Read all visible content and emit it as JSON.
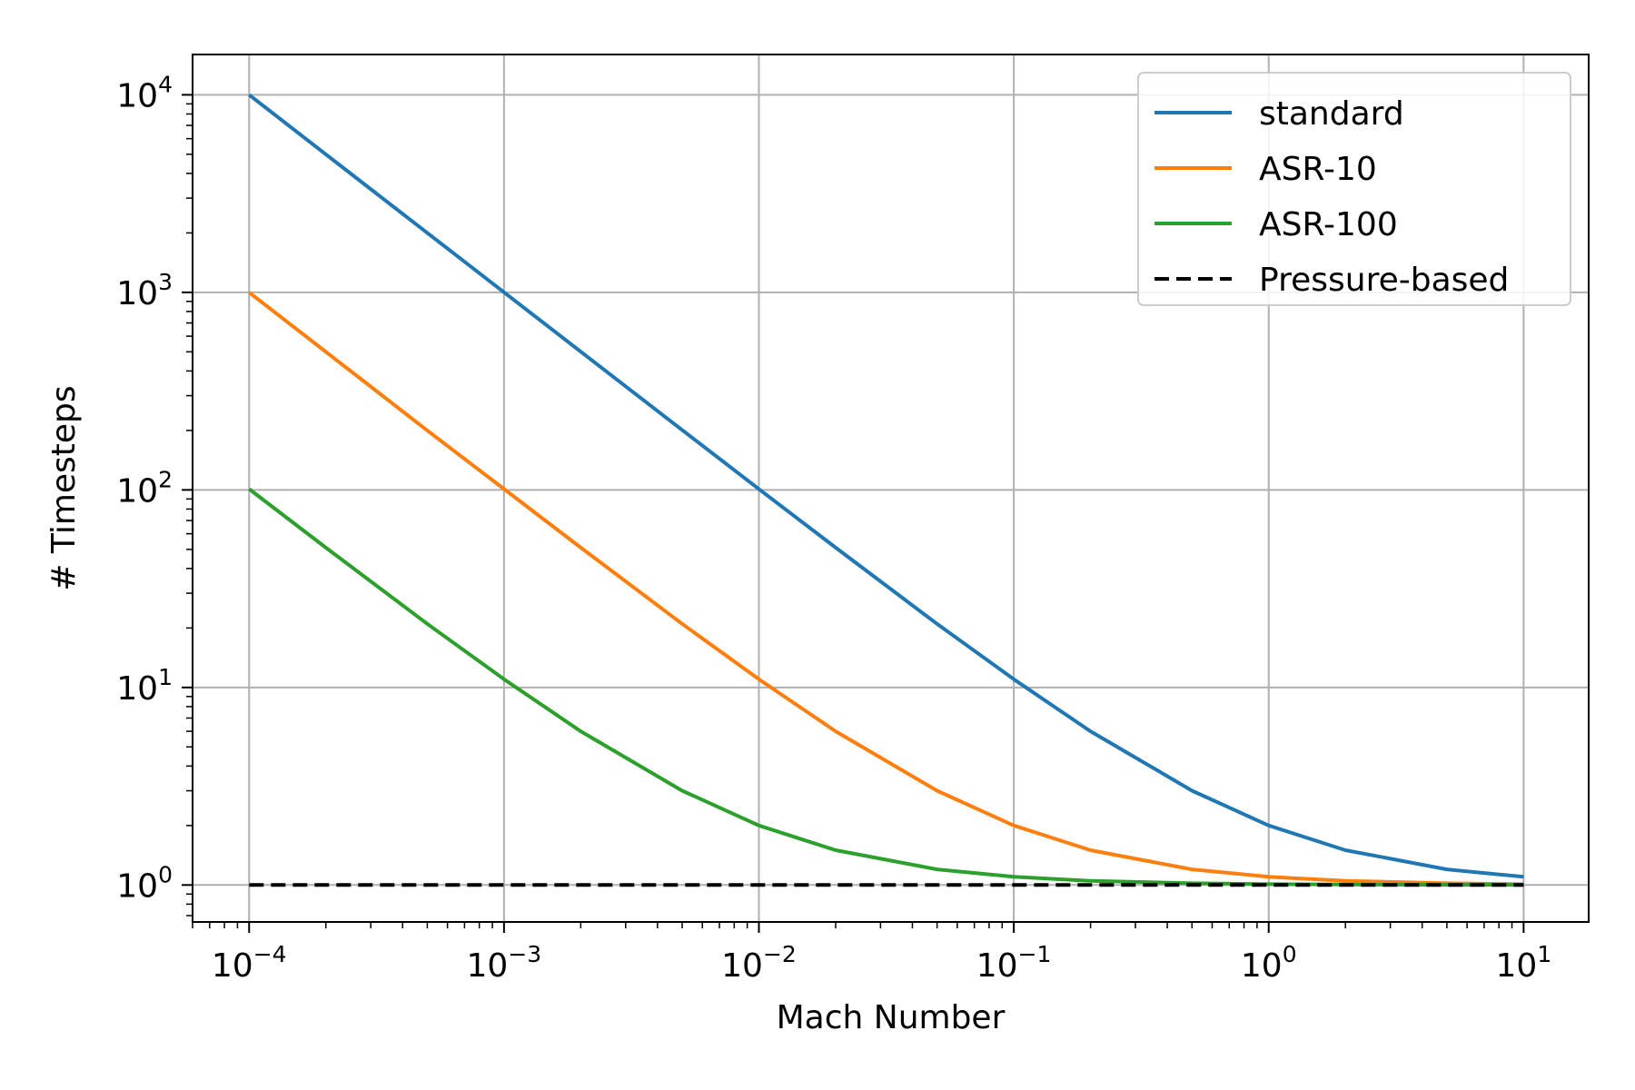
{
  "chart_data": {
    "type": "line",
    "xlabel": "Mach Number",
    "ylabel": "# Timesteps",
    "xscale": "log",
    "yscale": "log",
    "xlim": [
      6e-05,
      18
    ],
    "ylim": [
      0.65,
      16000
    ],
    "grid": true,
    "legend_position": "top-right",
    "x_ticks": [
      {
        "base": "10",
        "exp": "−4",
        "value": 0.0001
      },
      {
        "base": "10",
        "exp": "−3",
        "value": 0.001
      },
      {
        "base": "10",
        "exp": "−2",
        "value": 0.01
      },
      {
        "base": "10",
        "exp": "−1",
        "value": 0.1
      },
      {
        "base": "10",
        "exp": "0",
        "value": 1
      },
      {
        "base": "10",
        "exp": "1",
        "value": 10
      }
    ],
    "y_ticks": [
      {
        "base": "10",
        "exp": "0",
        "value": 1
      },
      {
        "base": "10",
        "exp": "1",
        "value": 10
      },
      {
        "base": "10",
        "exp": "2",
        "value": 100
      },
      {
        "base": "10",
        "exp": "3",
        "value": 1000
      },
      {
        "base": "10",
        "exp": "4",
        "value": 10000
      }
    ],
    "x": [
      0.0001,
      0.0002,
      0.0005,
      0.001,
      0.002,
      0.005,
      0.01,
      0.02,
      0.05,
      0.1,
      0.2,
      0.5,
      1,
      2,
      5,
      10
    ],
    "series": [
      {
        "name": "standard",
        "color": "#1f77b4",
        "style": "solid",
        "values": [
          10000,
          5000,
          2000,
          1001,
          501,
          201,
          101,
          51,
          21,
          11,
          6,
          3,
          2,
          1.5,
          1.2,
          1.1
        ]
      },
      {
        "name": "ASR-10",
        "color": "#ff7f0e",
        "style": "solid",
        "values": [
          1000,
          500,
          200,
          101,
          51,
          21,
          11,
          6,
          3,
          2,
          1.5,
          1.2,
          1.1,
          1.05,
          1.02,
          1.01
        ]
      },
      {
        "name": "ASR-100",
        "color": "#2ca02c",
        "style": "solid",
        "values": [
          101,
          51,
          21,
          11,
          6,
          3,
          2,
          1.5,
          1.2,
          1.1,
          1.05,
          1.02,
          1.01,
          1.005,
          1.002,
          1.001
        ]
      },
      {
        "name": "Pressure-based",
        "color": "#000000",
        "style": "dashed",
        "values": [
          1,
          1,
          1,
          1,
          1,
          1,
          1,
          1,
          1,
          1,
          1,
          1,
          1,
          1,
          1,
          1
        ]
      }
    ]
  }
}
